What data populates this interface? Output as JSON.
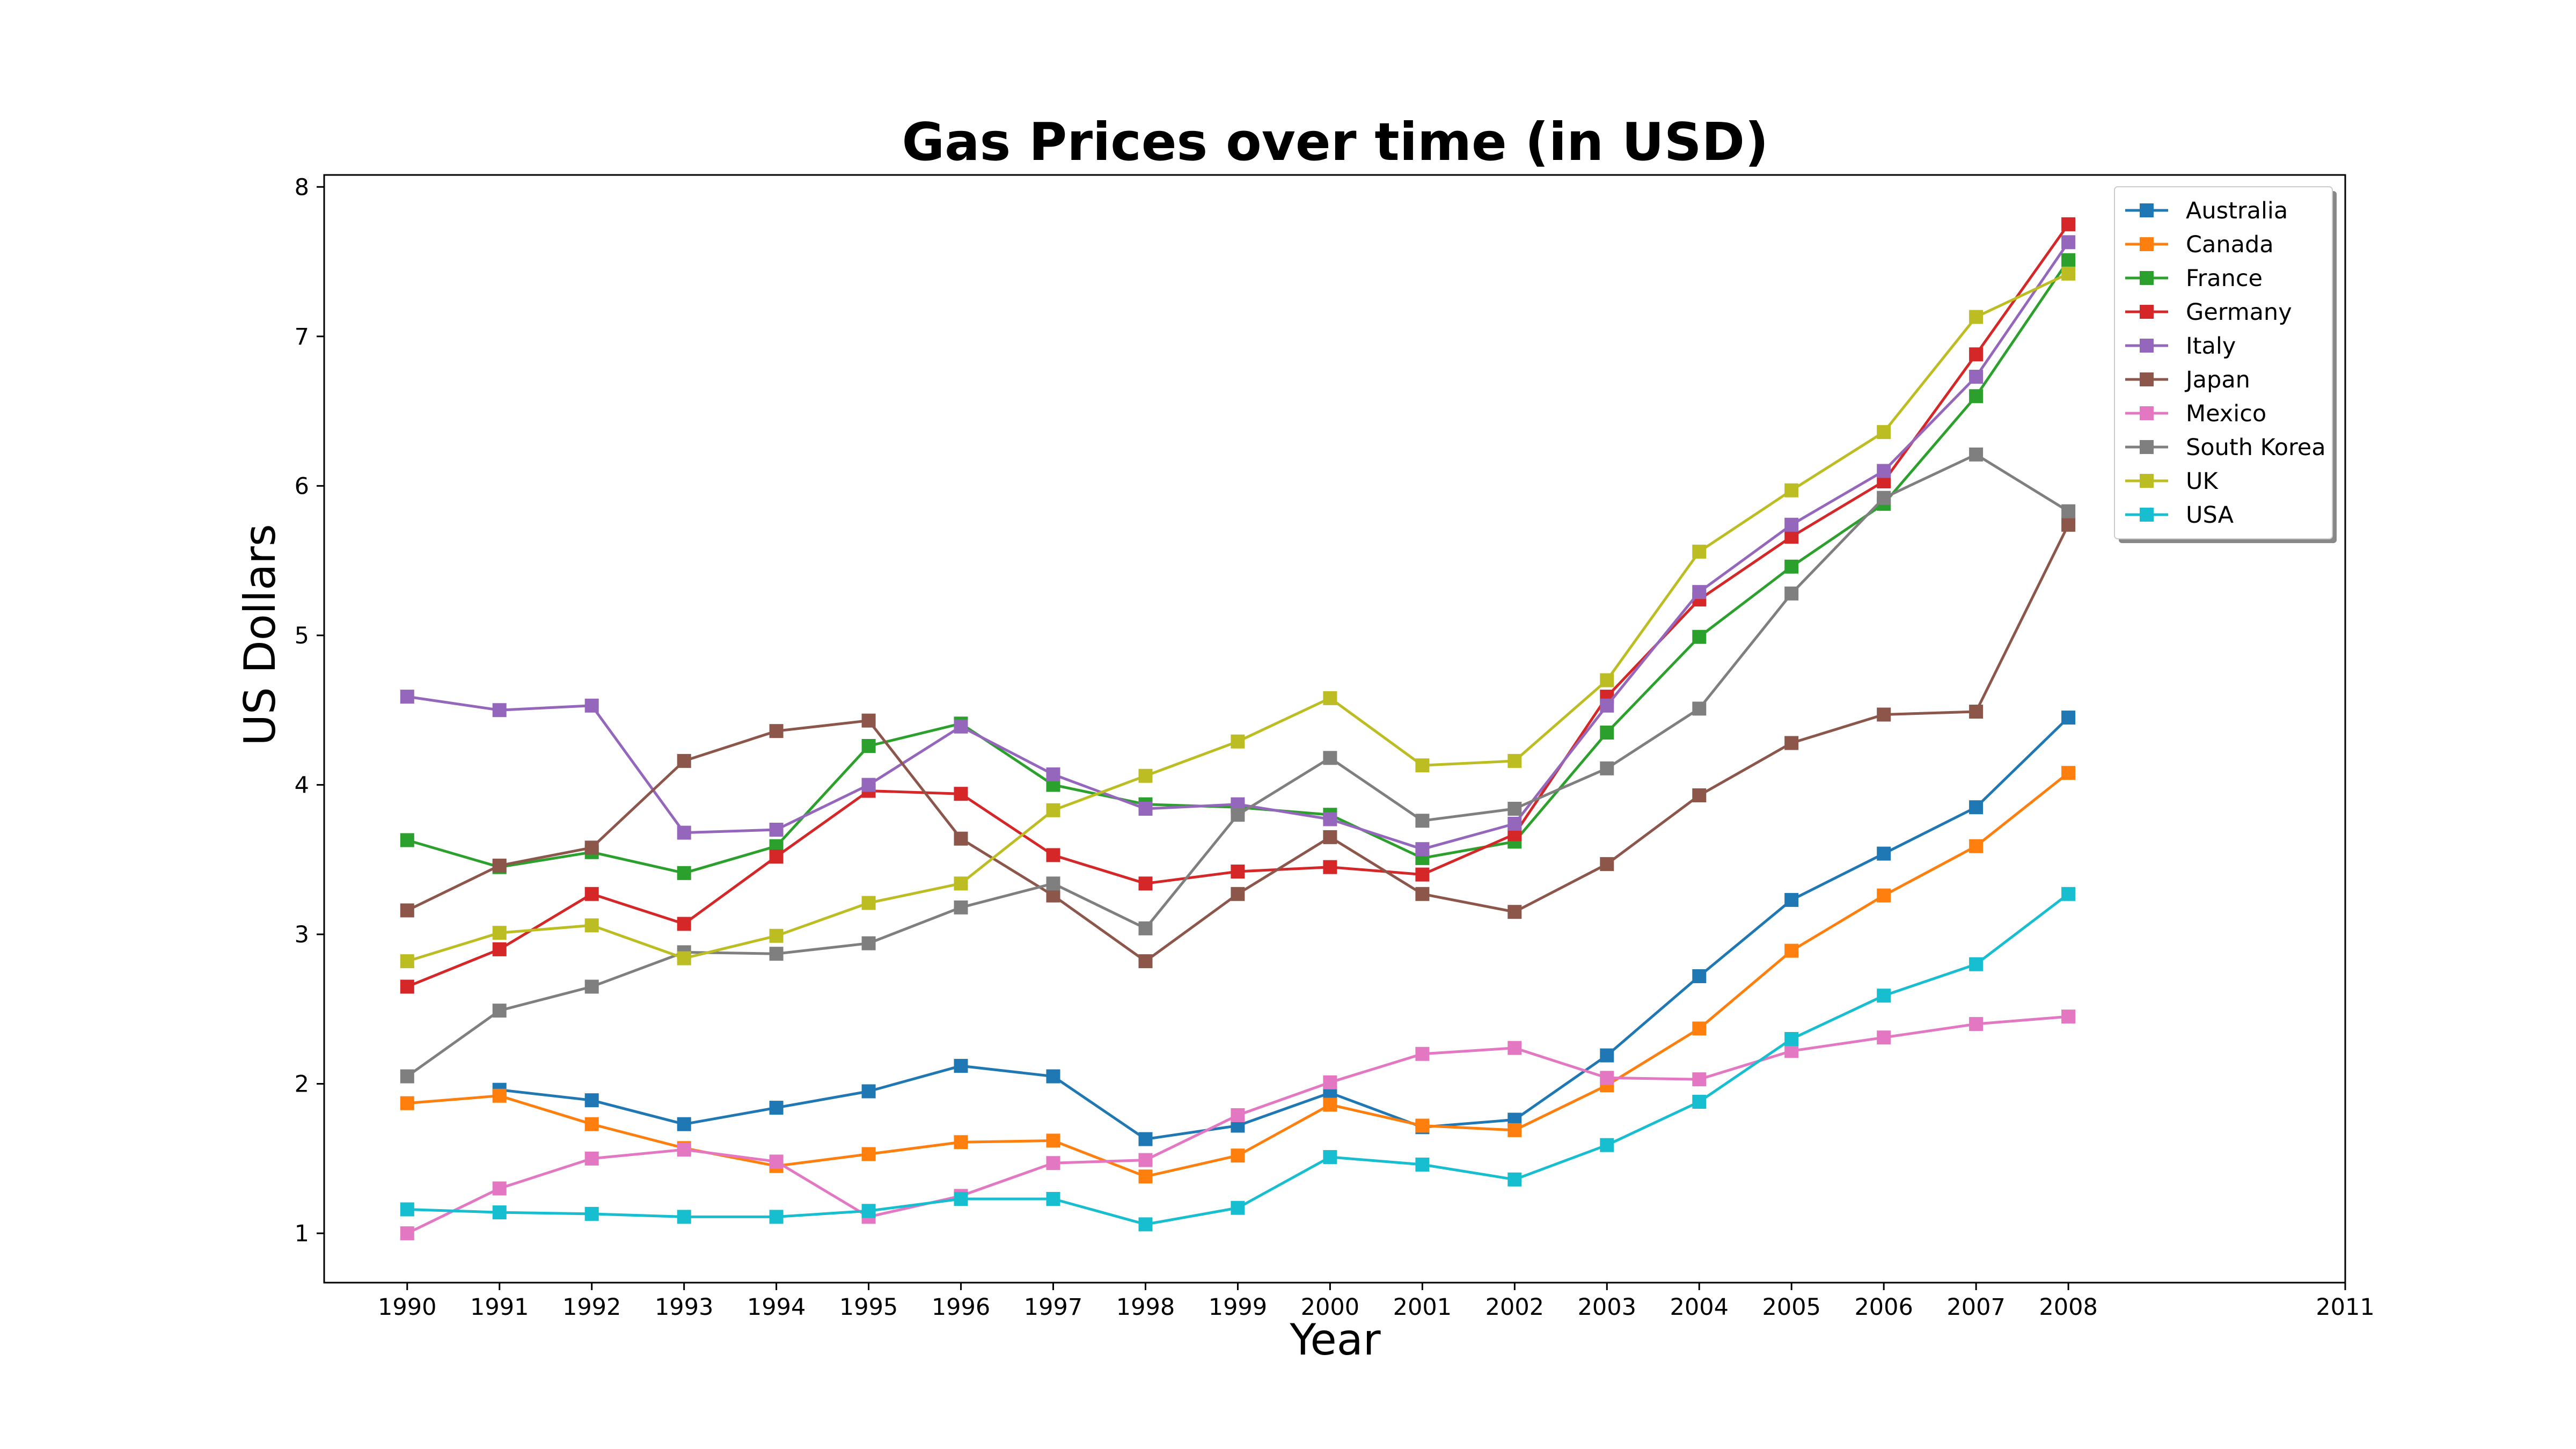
{
  "chart_data": {
    "type": "line",
    "title": "Gas Prices over time (in USD)",
    "xlabel": "Year",
    "ylabel": "US Dollars",
    "x": [
      1990,
      1991,
      1992,
      1993,
      1994,
      1995,
      1996,
      1997,
      1998,
      1999,
      2000,
      2001,
      2002,
      2003,
      2004,
      2005,
      2006,
      2007,
      2008
    ],
    "xticks": [
      1990,
      1991,
      1992,
      1993,
      1994,
      1995,
      1996,
      1997,
      1998,
      1999,
      2000,
      2001,
      2002,
      2003,
      2004,
      2005,
      2006,
      2007,
      2008,
      2011
    ],
    "yticks": [
      1,
      2,
      3,
      4,
      5,
      6,
      7,
      8
    ],
    "xlim": [
      1989.1,
      2011
    ],
    "ylim": [
      0.67,
      8.08
    ],
    "grid": false,
    "legend_position": "top-right",
    "marker": "square",
    "series": [
      {
        "name": "Australia",
        "color": "#1f77b4",
        "values": [
          null,
          1.96,
          1.89,
          1.73,
          1.84,
          1.95,
          2.12,
          2.05,
          1.63,
          1.72,
          1.94,
          1.71,
          1.76,
          2.19,
          2.72,
          3.23,
          3.54,
          3.85,
          4.45
        ]
      },
      {
        "name": "Canada",
        "color": "#ff7f0e",
        "values": [
          1.87,
          1.92,
          1.73,
          1.57,
          1.45,
          1.53,
          1.61,
          1.62,
          1.38,
          1.52,
          1.86,
          1.72,
          1.69,
          1.99,
          2.37,
          2.89,
          3.26,
          3.59,
          4.08
        ]
      },
      {
        "name": "France",
        "color": "#2ca02c",
        "values": [
          3.63,
          3.45,
          3.55,
          3.41,
          3.59,
          4.26,
          4.41,
          4.0,
          3.87,
          3.85,
          3.8,
          3.51,
          3.62,
          4.35,
          4.99,
          5.46,
          5.88,
          6.6,
          7.51
        ]
      },
      {
        "name": "Germany",
        "color": "#d62728",
        "values": [
          2.65,
          2.9,
          3.27,
          3.07,
          3.52,
          3.96,
          3.94,
          3.53,
          3.34,
          3.42,
          3.45,
          3.4,
          3.67,
          4.59,
          5.24,
          5.66,
          6.03,
          6.88,
          7.75
        ]
      },
      {
        "name": "Italy",
        "color": "#9467bd",
        "values": [
          4.59,
          4.5,
          4.53,
          3.68,
          3.7,
          4.0,
          4.39,
          4.07,
          3.84,
          3.87,
          3.77,
          3.57,
          3.74,
          4.53,
          5.29,
          5.74,
          6.1,
          6.73,
          7.63
        ]
      },
      {
        "name": "Japan",
        "color": "#8c564b",
        "values": [
          3.16,
          3.46,
          3.58,
          4.16,
          4.36,
          4.43,
          3.64,
          3.26,
          2.82,
          3.27,
          3.65,
          3.27,
          3.15,
          3.47,
          3.93,
          4.28,
          4.47,
          4.49,
          5.74
        ]
      },
      {
        "name": "Mexico",
        "color": "#e377c2",
        "values": [
          1.0,
          1.3,
          1.5,
          1.56,
          1.48,
          1.11,
          1.25,
          1.47,
          1.49,
          1.79,
          2.01,
          2.2,
          2.24,
          2.04,
          2.03,
          2.22,
          2.31,
          2.4,
          2.45
        ]
      },
      {
        "name": "South Korea",
        "color": "#7f7f7f",
        "values": [
          2.05,
          2.49,
          2.65,
          2.88,
          2.87,
          2.94,
          3.18,
          3.34,
          3.04,
          3.8,
          4.18,
          3.76,
          3.84,
          4.11,
          4.51,
          5.28,
          5.92,
          6.21,
          5.83
        ]
      },
      {
        "name": "UK",
        "color": "#bcbd22",
        "values": [
          2.82,
          3.01,
          3.06,
          2.84,
          2.99,
          3.21,
          3.34,
          3.83,
          4.06,
          4.29,
          4.58,
          4.13,
          4.16,
          4.7,
          5.56,
          5.97,
          6.36,
          7.13,
          7.42
        ]
      },
      {
        "name": "USA",
        "color": "#17becf",
        "values": [
          1.16,
          1.14,
          1.13,
          1.11,
          1.11,
          1.15,
          1.23,
          1.23,
          1.06,
          1.17,
          1.51,
          1.46,
          1.36,
          1.59,
          1.88,
          2.3,
          2.59,
          2.8,
          3.27
        ]
      }
    ]
  }
}
